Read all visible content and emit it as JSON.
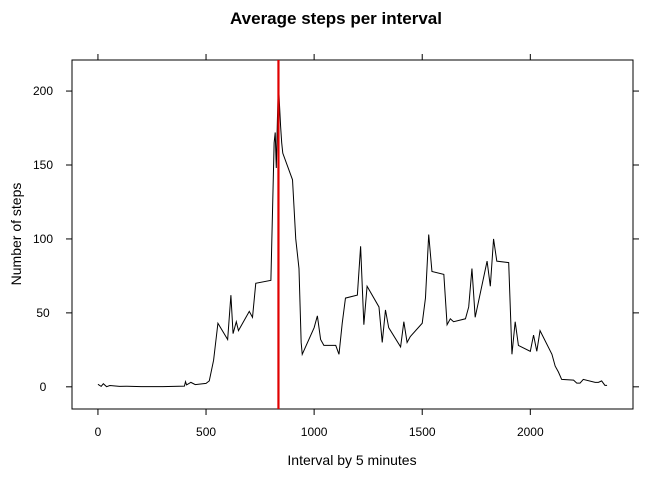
{
  "chart_data": {
    "type": "line",
    "title": "Average steps per interval",
    "xlabel": "Interval by 5 minutes",
    "ylabel": "Number of steps",
    "xlim": [
      -120,
      2475
    ],
    "ylim": [
      -15,
      221
    ],
    "xticks": [
      0,
      500,
      1000,
      1500,
      2000
    ],
    "yticks": [
      0,
      50,
      100,
      150,
      200
    ],
    "grid": false,
    "line_color": "#000000",
    "vline": {
      "x": 835,
      "color": "#e00000"
    },
    "series": [
      {
        "x": [
          0,
          15,
          25,
          40,
          55,
          100,
          130,
          200,
          300,
          400,
          405,
          410,
          430,
          450,
          500,
          515,
          535,
          555,
          600,
          615,
          625,
          640,
          650,
          700,
          715,
          730,
          800,
          815,
          820,
          825,
          830,
          835,
          840,
          845,
          850,
          855,
          900,
          915,
          930,
          940,
          945,
          1000,
          1015,
          1030,
          1045,
          1100,
          1115,
          1130,
          1145,
          1200,
          1215,
          1230,
          1245,
          1300,
          1315,
          1330,
          1345,
          1400,
          1415,
          1430,
          1445,
          1500,
          1515,
          1530,
          1545,
          1600,
          1615,
          1630,
          1645,
          1700,
          1715,
          1730,
          1745,
          1800,
          1815,
          1830,
          1845,
          1900,
          1915,
          1930,
          1945,
          2000,
          2015,
          2030,
          2045,
          2100,
          2115,
          2130,
          2145,
          2200,
          2215,
          2230,
          2245,
          2300,
          2315,
          2330,
          2345,
          2355
        ],
        "y": [
          1.7,
          0.3,
          2.1,
          0.1,
          0.9,
          0.3,
          0.4,
          0.1,
          0.1,
          0.5,
          3.5,
          1.3,
          3.0,
          1.5,
          2.3,
          4.0,
          18,
          43,
          32,
          62,
          36,
          44,
          38,
          51,
          47,
          70,
          72,
          165,
          172,
          148,
          180,
          206,
          190,
          176,
          165,
          158,
          140,
          100,
          80,
          30,
          22,
          40,
          48,
          32,
          28,
          28,
          22,
          43,
          60,
          62,
          95,
          42,
          68,
          54,
          30,
          52,
          40,
          27,
          44,
          30,
          34,
          43,
          60,
          103,
          78,
          76,
          42,
          46,
          44,
          46,
          54,
          80,
          47,
          85,
          68,
          100,
          85,
          84,
          22,
          44,
          28,
          24,
          35,
          24,
          38,
          22,
          14,
          10,
          5,
          4.5,
          2.5,
          2.5,
          5,
          3,
          3,
          4,
          1,
          1
        ]
      }
    ]
  }
}
